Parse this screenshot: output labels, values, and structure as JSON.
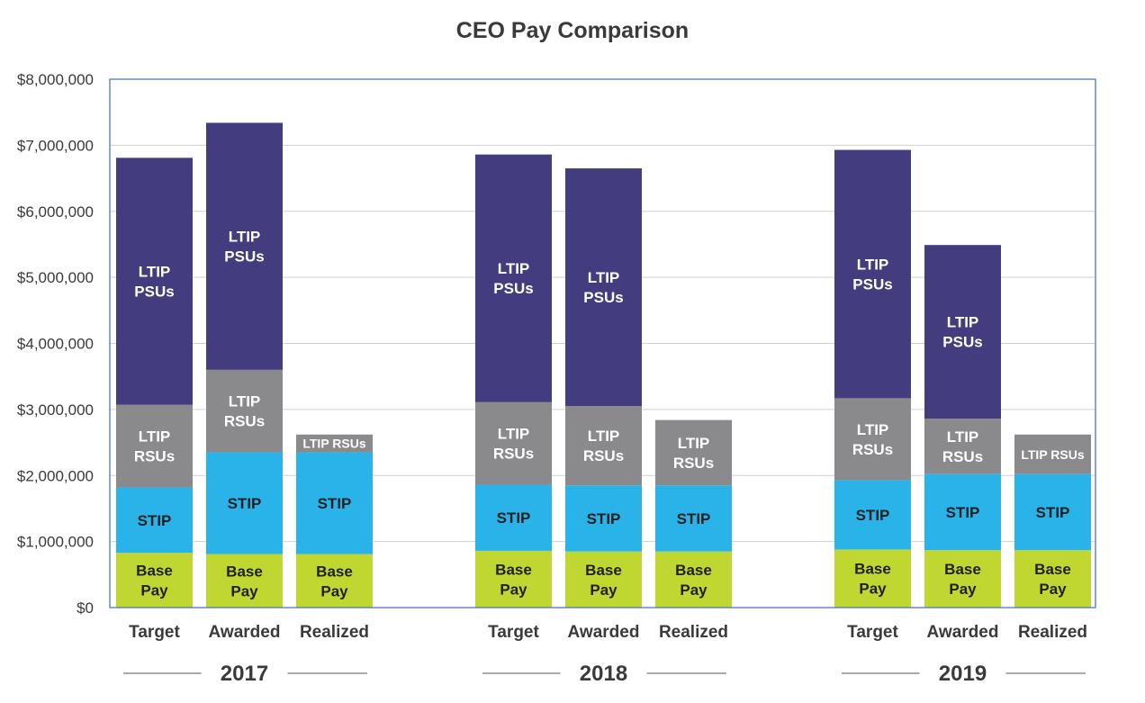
{
  "chart_data": {
    "type": "bar",
    "stacked": true,
    "title": "CEO Pay Comparison",
    "xlabel": "",
    "ylabel": "",
    "ylim": [
      0,
      8000000
    ],
    "yticks": [
      {
        "value": 0,
        "label": "$0"
      },
      {
        "value": 1000000,
        "label": "$1,000,000"
      },
      {
        "value": 2000000,
        "label": "$2,000,000"
      },
      {
        "value": 3000000,
        "label": "$3,000,000"
      },
      {
        "value": 4000000,
        "label": "$4,000,000"
      },
      {
        "value": 5000000,
        "label": "$5,000,000"
      },
      {
        "value": 6000000,
        "label": "$6,000,000"
      },
      {
        "value": 7000000,
        "label": "$7,000,000"
      },
      {
        "value": 8000000,
        "label": "$8,000,000"
      }
    ],
    "grid": true,
    "series_meta": [
      {
        "key": "base",
        "name": "Base Pay",
        "color": "#bfd730",
        "text_color": "#1f1f1f"
      },
      {
        "key": "stip",
        "name": "STIP",
        "color": "#29b3e8",
        "text_color": "#1f1f1f"
      },
      {
        "key": "rsu",
        "name": "LTIP RSUs",
        "color": "#8a8a8c",
        "text_color": "#ffffff"
      },
      {
        "key": "psu",
        "name": "LTIP PSUs",
        "color": "#433d7f",
        "text_color": "#ffffff"
      }
    ],
    "groups": [
      {
        "year": "2017",
        "bars": [
          {
            "category": "Target",
            "segments": [
              {
                "key": "base",
                "value": 830000,
                "label": [
                  "Base",
                  "Pay"
                ]
              },
              {
                "key": "stip",
                "value": 990000,
                "label": [
                  "STIP"
                ]
              },
              {
                "key": "rsu",
                "value": 1250000,
                "label": [
                  "LTIP",
                  "RSUs"
                ]
              },
              {
                "key": "psu",
                "value": 3740000,
                "label": [
                  "LTIP",
                  "PSUs"
                ]
              }
            ]
          },
          {
            "category": "Awarded",
            "segments": [
              {
                "key": "base",
                "value": 810000,
                "label": [
                  "Base",
                  "Pay"
                ]
              },
              {
                "key": "stip",
                "value": 1540000,
                "label": [
                  "STIP"
                ]
              },
              {
                "key": "rsu",
                "value": 1250000,
                "label": [
                  "LTIP",
                  "RSUs"
                ]
              },
              {
                "key": "psu",
                "value": 3740000,
                "label": [
                  "LTIP",
                  "PSUs"
                ]
              }
            ]
          },
          {
            "category": "Realized",
            "segments": [
              {
                "key": "base",
                "value": 810000,
                "label": [
                  "Base",
                  "Pay"
                ]
              },
              {
                "key": "stip",
                "value": 1540000,
                "label": [
                  "STIP"
                ]
              },
              {
                "key": "rsu",
                "value": 270000,
                "label": [
                  "LTIP RSUs"
                ],
                "small": true
              }
            ]
          }
        ]
      },
      {
        "year": "2018",
        "bars": [
          {
            "category": "Target",
            "segments": [
              {
                "key": "base",
                "value": 860000,
                "label": [
                  "Base",
                  "Pay"
                ]
              },
              {
                "key": "stip",
                "value": 1000000,
                "label": [
                  "STIP"
                ]
              },
              {
                "key": "rsu",
                "value": 1250000,
                "label": [
                  "LTIP",
                  "RSUs"
                ]
              },
              {
                "key": "psu",
                "value": 3750000,
                "label": [
                  "LTIP",
                  "PSUs"
                ]
              }
            ]
          },
          {
            "category": "Awarded",
            "segments": [
              {
                "key": "base",
                "value": 850000,
                "label": [
                  "Base",
                  "Pay"
                ]
              },
              {
                "key": "stip",
                "value": 1000000,
                "label": [
                  "STIP"
                ]
              },
              {
                "key": "rsu",
                "value": 1200000,
                "label": [
                  "LTIP",
                  "RSUs"
                ]
              },
              {
                "key": "psu",
                "value": 3600000,
                "label": [
                  "LTIP",
                  "PSUs"
                ]
              }
            ]
          },
          {
            "category": "Realized",
            "segments": [
              {
                "key": "base",
                "value": 850000,
                "label": [
                  "Base",
                  "Pay"
                ]
              },
              {
                "key": "stip",
                "value": 1000000,
                "label": [
                  "STIP"
                ]
              },
              {
                "key": "rsu",
                "value": 990000,
                "label": [
                  "LTIP",
                  "RSUs"
                ]
              }
            ]
          }
        ]
      },
      {
        "year": "2019",
        "bars": [
          {
            "category": "Target",
            "segments": [
              {
                "key": "base",
                "value": 880000,
                "label": [
                  "Base",
                  "Pay"
                ]
              },
              {
                "key": "stip",
                "value": 1050000,
                "label": [
                  "STIP"
                ]
              },
              {
                "key": "rsu",
                "value": 1240000,
                "label": [
                  "LTIP",
                  "RSUs"
                ]
              },
              {
                "key": "psu",
                "value": 3760000,
                "label": [
                  "LTIP",
                  "PSUs"
                ]
              }
            ]
          },
          {
            "category": "Awarded",
            "segments": [
              {
                "key": "base",
                "value": 870000,
                "label": [
                  "Base",
                  "Pay"
                ]
              },
              {
                "key": "stip",
                "value": 1150000,
                "label": [
                  "STIP"
                ]
              },
              {
                "key": "rsu",
                "value": 840000,
                "label": [
                  "LTIP",
                  "RSUs"
                ]
              },
              {
                "key": "psu",
                "value": 2630000,
                "label": [
                  "LTIP",
                  "PSUs"
                ]
              }
            ]
          },
          {
            "category": "Realized",
            "segments": [
              {
                "key": "base",
                "value": 870000,
                "label": [
                  "Base",
                  "Pay"
                ]
              },
              {
                "key": "stip",
                "value": 1150000,
                "label": [
                  "STIP"
                ]
              },
              {
                "key": "rsu",
                "value": 600000,
                "label": [
                  "LTIP RSUs"
                ],
                "small": true
              }
            ]
          }
        ]
      }
    ]
  },
  "colors": {
    "axis_frame": "#3f6fb5",
    "gridline": "#d0d0d0",
    "text": "#3a3a3a",
    "year_rule": "#555555"
  }
}
